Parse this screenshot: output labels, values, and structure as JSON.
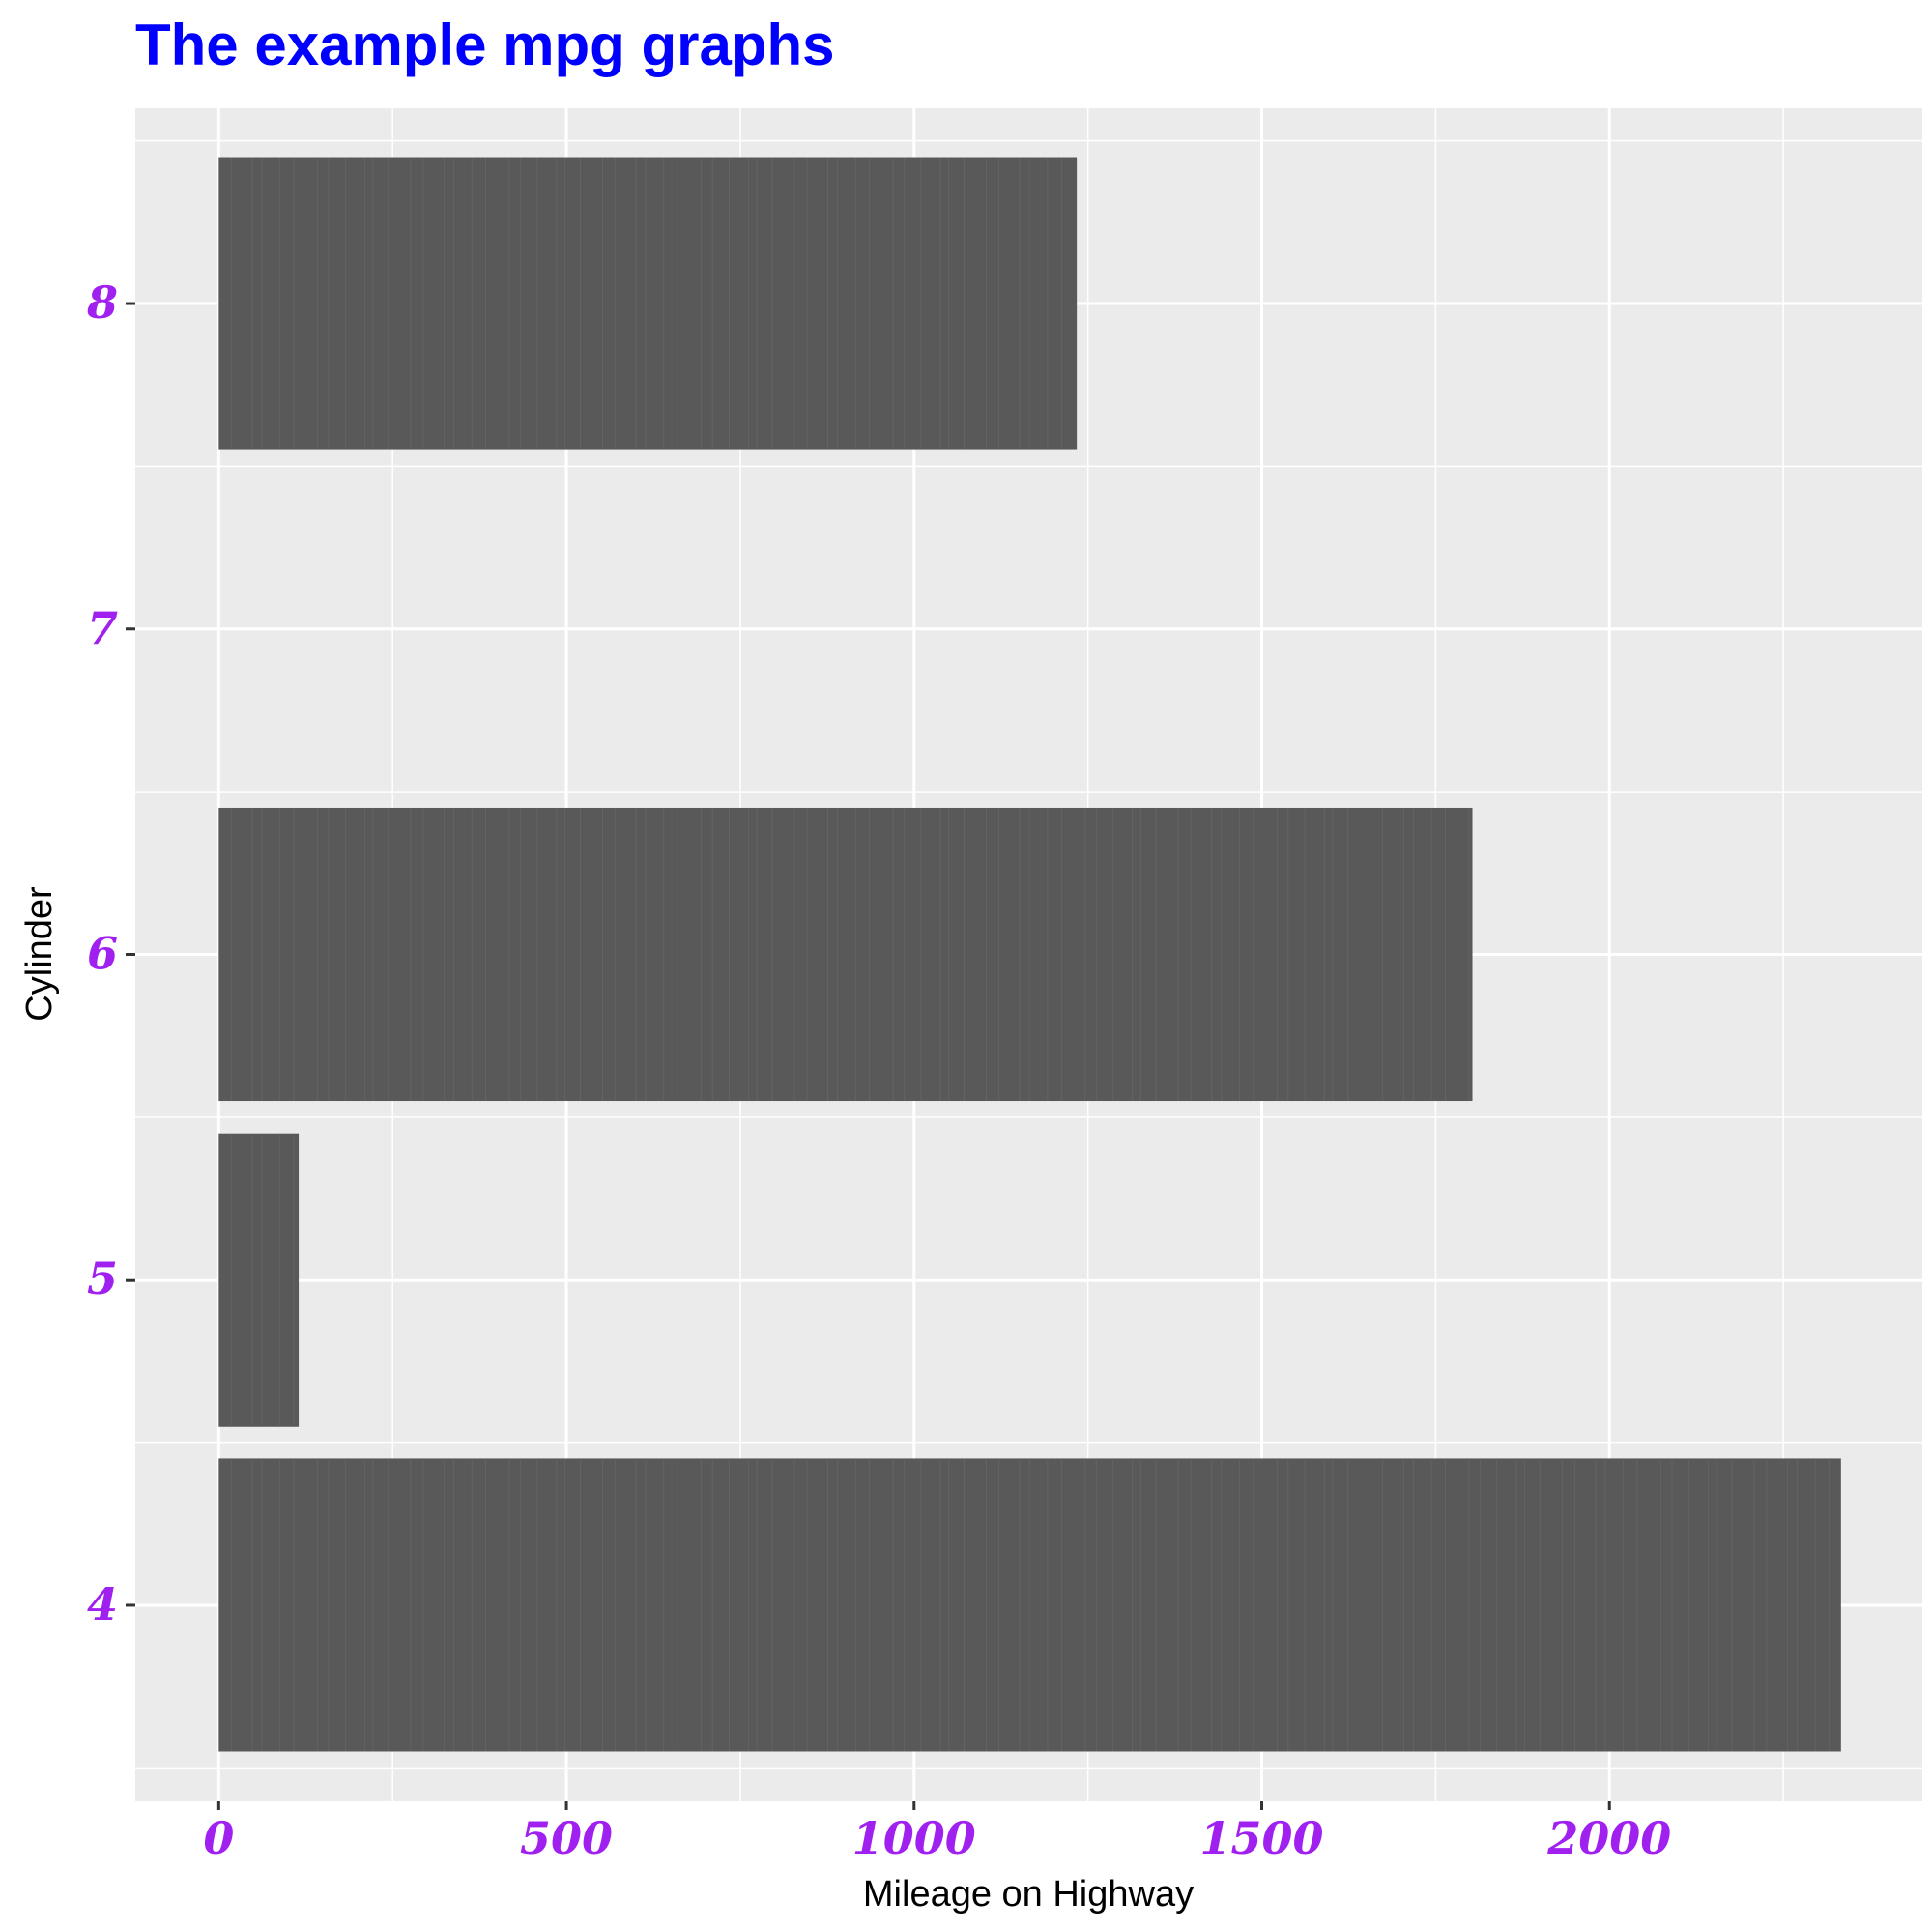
{
  "chart_data": {
    "type": "bar",
    "orientation": "horizontal",
    "title": "The example mpg graphs",
    "xlabel": "Mileage on Highway",
    "ylabel": "Cylinder",
    "categories": [
      "4",
      "5",
      "6",
      "7",
      "8"
    ],
    "values": [
      2333,
      115,
      1803,
      0,
      1234
    ],
    "xlim": [
      -120,
      2450
    ],
    "x_ticks": [
      0,
      500,
      1000,
      1500,
      2000
    ],
    "grid": true,
    "legend": "none",
    "colors": {
      "title": "#0000ff",
      "tick_labels": "#a020f0",
      "bar_fill": "#595959",
      "panel_background": "#ebebeb",
      "grid": "#ffffff"
    }
  }
}
